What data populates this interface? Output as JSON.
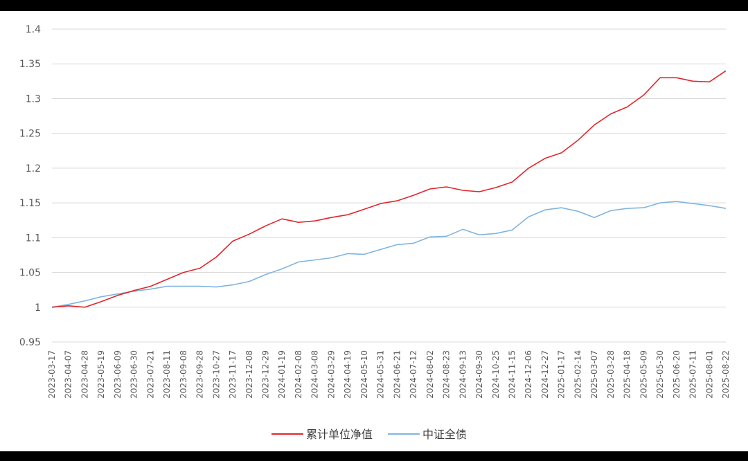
{
  "chart_data": {
    "type": "line",
    "title": "",
    "xlabel": "",
    "ylabel": "",
    "ylim": [
      0.95,
      1.4
    ],
    "yticks": [
      "0.95",
      "1",
      "1.05",
      "1.1",
      "1.15",
      "1.2",
      "1.25",
      "1.3",
      "1.35",
      "1.4"
    ],
    "grid": true,
    "legend": "bottom",
    "x": [
      "2023-03-17",
      "2023-04-07",
      "2023-04-28",
      "2023-05-19",
      "2023-06-09",
      "2023-06-30",
      "2023-07-21",
      "2023-08-11",
      "2023-09-08",
      "2023-09-28",
      "2023-10-27",
      "2023-11-17",
      "2023-12-08",
      "2023-12-29",
      "2024-01-19",
      "2024-02-08",
      "2024-03-08",
      "2024-03-29",
      "2024-04-19",
      "2024-05-10",
      "2024-05-31",
      "2024-06-21",
      "2024-07-12",
      "2024-08-02",
      "2024-08-23",
      "2024-09-13",
      "2024-09-30",
      "2024-10-25",
      "2024-11-15",
      "2024-12-06",
      "2024-12-27",
      "2025-01-17",
      "2025-02-14",
      "2025-03-07",
      "2025-03-28",
      "2025-04-18",
      "2025-05-09",
      "2025-05-30",
      "2025-06-20",
      "2025-07-11",
      "2025-08-01",
      "2025-08-22"
    ],
    "series": [
      {
        "name": "累计单位净值",
        "color": "#e0262b",
        "values": [
          1.0,
          1.002,
          1.0,
          1.008,
          1.017,
          1.024,
          1.03,
          1.04,
          1.05,
          1.056,
          1.072,
          1.095,
          1.105,
          1.117,
          1.127,
          1.122,
          1.124,
          1.129,
          1.133,
          1.141,
          1.149,
          1.153,
          1.161,
          1.17,
          1.173,
          1.168,
          1.166,
          1.172,
          1.18,
          1.2,
          1.214,
          1.222,
          1.24,
          1.262,
          1.278,
          1.288,
          1.305,
          1.33,
          1.33,
          1.325,
          1.324,
          1.34
        ]
      },
      {
        "name": "中证全债",
        "color": "#7fb4e0",
        "values": [
          1.0,
          1.004,
          1.009,
          1.015,
          1.019,
          1.023,
          1.026,
          1.03,
          1.03,
          1.03,
          1.029,
          1.032,
          1.037,
          1.047,
          1.055,
          1.065,
          1.068,
          1.071,
          1.077,
          1.076,
          1.083,
          1.09,
          1.092,
          1.101,
          1.102,
          1.112,
          1.104,
          1.106,
          1.111,
          1.13,
          1.14,
          1.143,
          1.138,
          1.129,
          1.139,
          1.142,
          1.143,
          1.15,
          1.152,
          1.149,
          1.146,
          1.142
        ]
      }
    ]
  }
}
